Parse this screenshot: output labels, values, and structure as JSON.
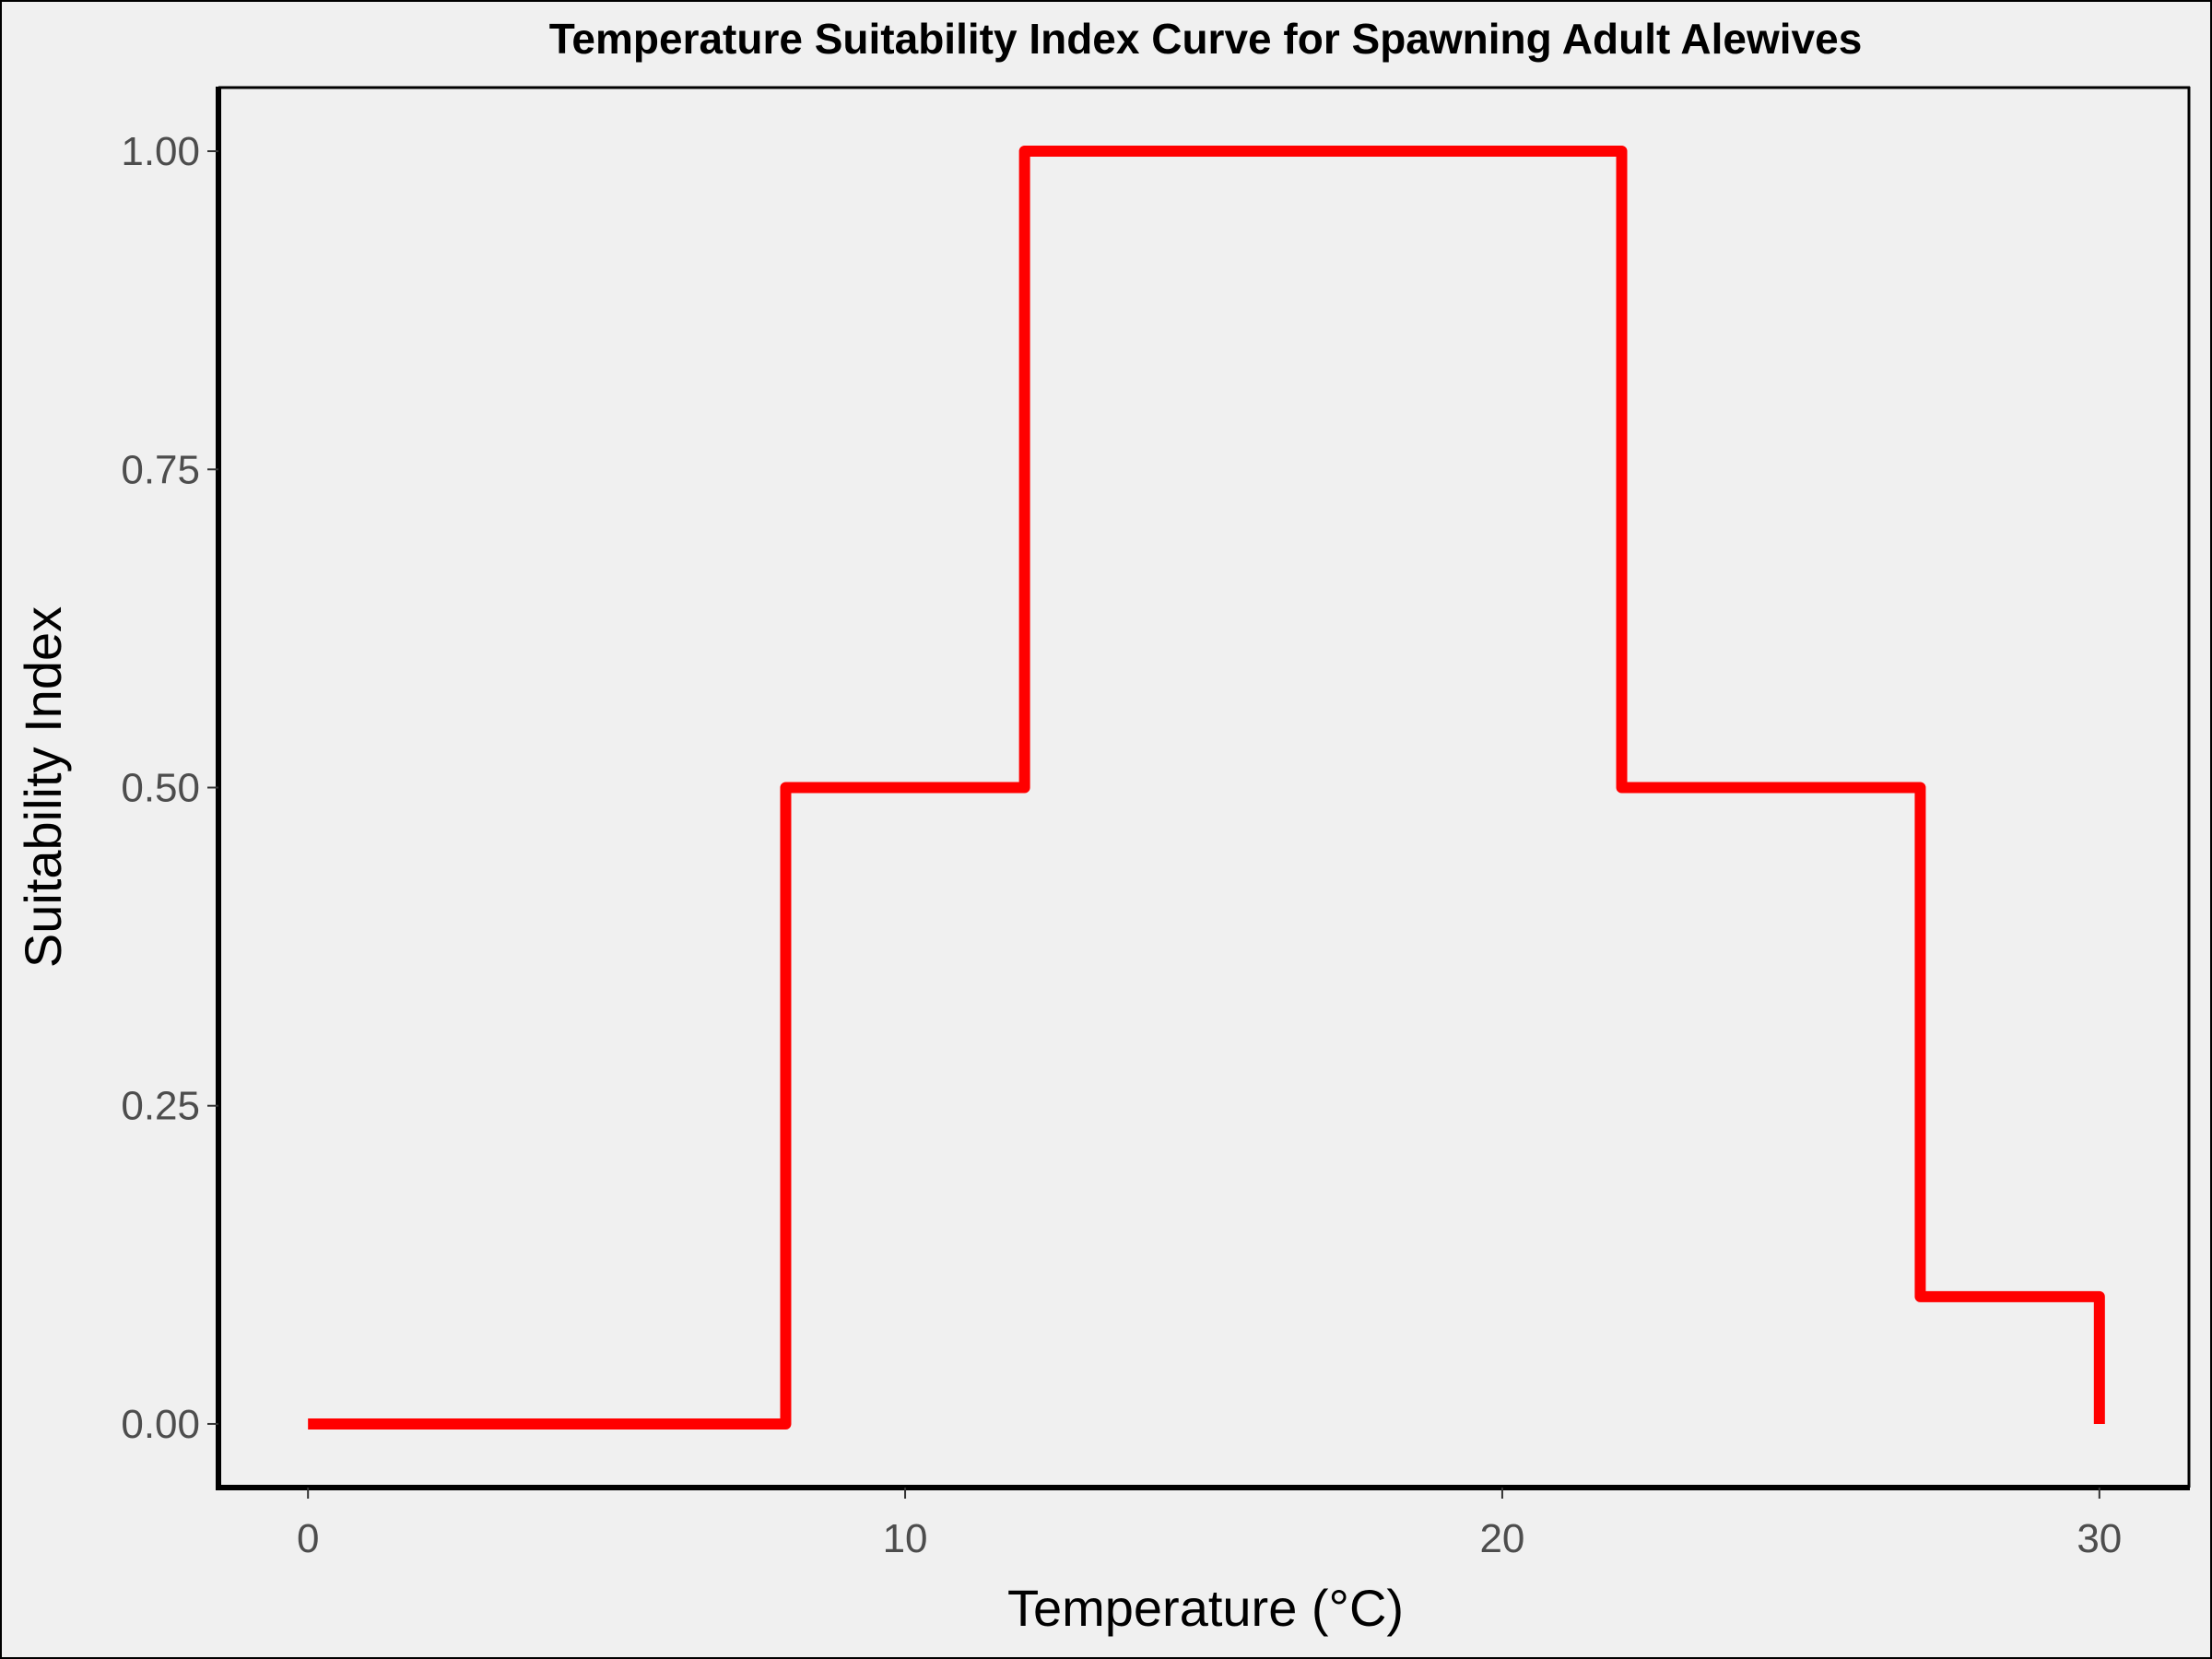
{
  "chart_data": {
    "type": "line",
    "step": true,
    "title": "Temperature Suitability Index Curve for Spawning Adult Alewives",
    "xlabel": "Temperature (°C)",
    "ylabel": "Suitability Index",
    "xlim": [
      -1.5,
      31.5
    ],
    "ylim": [
      -0.05,
      1.05
    ],
    "xticks": [
      0,
      10,
      20,
      30
    ],
    "xtick_labels": [
      "0",
      "10",
      "20",
      "30"
    ],
    "yticks": [
      0,
      0.25,
      0.5,
      0.75,
      1.0
    ],
    "ytick_labels": [
      "0.00",
      "0.25",
      "0.50",
      "0.75",
      "1.00"
    ],
    "grid": false,
    "series": [
      {
        "color": "#ff0000",
        "points": [
          {
            "x": 0,
            "y": 0
          },
          {
            "x": 8,
            "y": 0
          },
          {
            "x": 8,
            "y": 0.5
          },
          {
            "x": 12,
            "y": 0.5
          },
          {
            "x": 12,
            "y": 1.0
          },
          {
            "x": 22,
            "y": 1.0
          },
          {
            "x": 22,
            "y": 0.5
          },
          {
            "x": 27,
            "y": 0.5
          },
          {
            "x": 27,
            "y": 0.1
          },
          {
            "x": 30,
            "y": 0.1
          },
          {
            "x": 30,
            "y": 0
          }
        ]
      }
    ]
  },
  "colors": {
    "background": "#f0f0f0",
    "line": "#ff0000",
    "axis": "#000000",
    "tick_text": "#4d4d4d"
  }
}
